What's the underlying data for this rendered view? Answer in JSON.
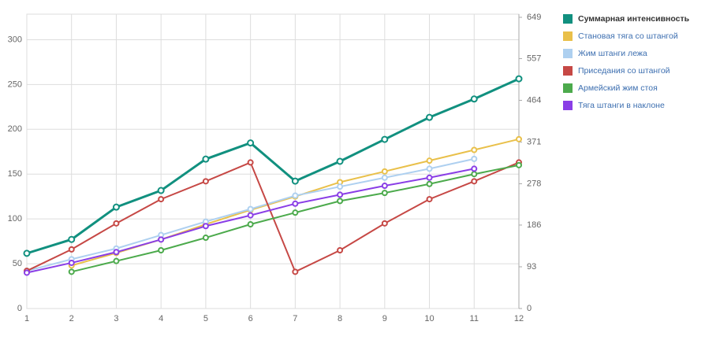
{
  "chart_data": {
    "type": "line",
    "x": [
      1,
      2,
      3,
      4,
      5,
      6,
      7,
      8,
      9,
      10,
      11,
      12
    ],
    "xlim": [
      1,
      12
    ],
    "ylim": [
      0,
      325
    ],
    "yticks": [
      0,
      50,
      100,
      150,
      200,
      250,
      300
    ],
    "y2lim": [
      0,
      649
    ],
    "y2ticks": [
      0,
      93,
      186,
      278,
      371,
      464,
      557,
      649
    ],
    "grid": true,
    "legend": "top-right",
    "series": [
      {
        "name": "Суммарная интенсивность",
        "color": "#11907f",
        "axis": "y2",
        "values": [
          123,
          154,
          226,
          263,
          333,
          369,
          284,
          328,
          377,
          426,
          467,
          512
        ]
      },
      {
        "name": "Становая тяга со штангой",
        "color": "#e9c04a",
        "values": [
          null,
          48,
          62,
          77,
          94,
          110,
          125,
          141,
          153,
          165,
          177,
          189
        ]
      },
      {
        "name": "Жим штанги лежа",
        "color": "#aed0f0",
        "values": [
          42,
          55,
          67,
          82,
          97,
          111,
          126,
          136,
          146,
          156,
          167,
          null
        ]
      },
      {
        "name": "Приседания со штангой",
        "color": "#c64845",
        "values": [
          42,
          66,
          95,
          122,
          142,
          163,
          41,
          65,
          95,
          122,
          142,
          163
        ]
      },
      {
        "name": "Армейский жим стоя",
        "color": "#4caa4c",
        "values": [
          null,
          41,
          53,
          65,
          79,
          94,
          107,
          120,
          129,
          139,
          150,
          160
        ]
      },
      {
        "name": "Тяга штанги в наклоне",
        "color": "#8a3ee6",
        "values": [
          40,
          51,
          63,
          77,
          92,
          104,
          117,
          127,
          137,
          146,
          156,
          null
        ]
      }
    ]
  }
}
